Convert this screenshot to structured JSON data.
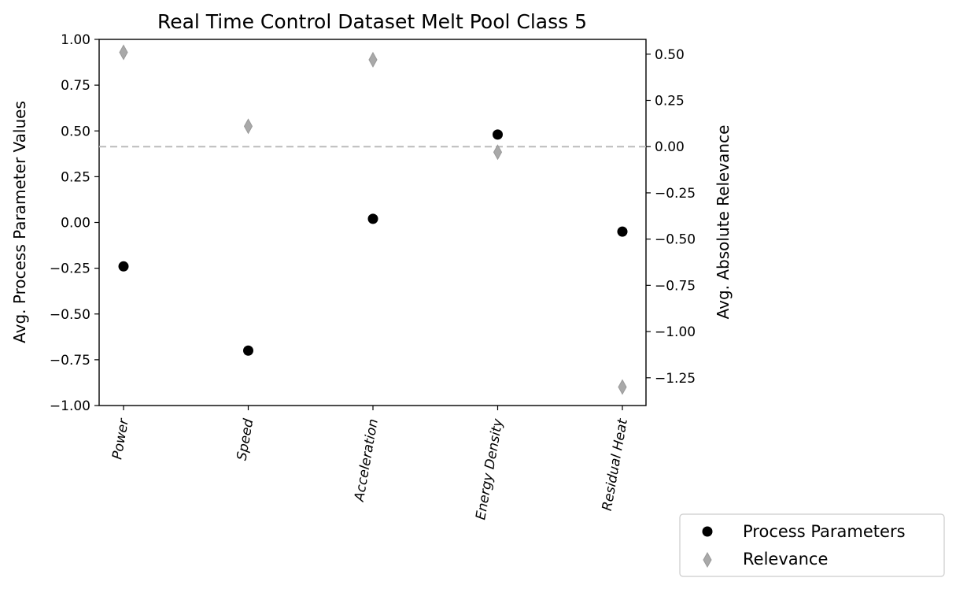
{
  "chart_data": {
    "type": "scatter",
    "title": "Real Time Control Dataset Melt Pool Class 5",
    "categories": [
      "Power",
      "Speed",
      "Acceleration",
      "Energy Density",
      "Residual Heat"
    ],
    "y_left": {
      "label": "Avg. Process Parameter Values",
      "ylim": [
        -1.0,
        1.0
      ],
      "ticks": [
        -1.0,
        -0.75,
        -0.5,
        -0.25,
        0.0,
        0.25,
        0.5,
        0.75,
        1.0
      ],
      "tick_labels": [
        "−1.00",
        "−0.75",
        "−0.50",
        "−0.25",
        "0.00",
        "0.25",
        "0.50",
        "0.75",
        "1.00"
      ]
    },
    "y_right": {
      "label": "Avg. Absolute Relevance",
      "ylim": [
        -1.4,
        0.58
      ],
      "ticks": [
        -1.25,
        -1.0,
        -0.75,
        -0.5,
        -0.25,
        0.0,
        0.25,
        0.5
      ],
      "tick_labels": [
        "−1.25",
        "−1.00",
        "−0.75",
        "−0.50",
        "−0.25",
        "0.00",
        "0.25",
        "0.50"
      ]
    },
    "series": [
      {
        "name": "Process Parameters",
        "marker": "circle",
        "color": "#000000",
        "axis": "left",
        "values": [
          -0.24,
          -0.7,
          0.02,
          0.48,
          -0.05
        ]
      },
      {
        "name": "Relevance",
        "marker": "thin_diamond",
        "color": "#a9a9a9",
        "axis": "right",
        "values": [
          0.51,
          0.11,
          0.47,
          -0.03,
          -1.3
        ]
      }
    ],
    "reference_line": {
      "axis": "right",
      "value": 0.0,
      "style": "dashed",
      "color": "#bbbbbb"
    },
    "legend": {
      "placement": "bottom-right, outside plot area"
    },
    "grid": false
  }
}
